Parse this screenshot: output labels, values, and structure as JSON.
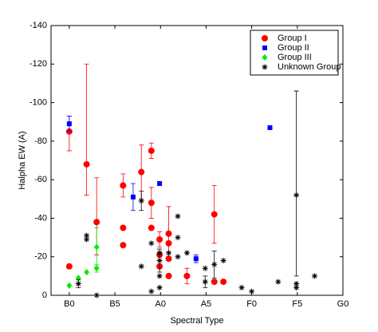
{
  "chart_data": {
    "type": "scatter",
    "xlabel": "Spectral Type",
    "ylabel": "Halpha EW (A)",
    "xlim": [
      -2,
      30
    ],
    "ylim": [
      0,
      -140
    ],
    "xticks": [
      {
        "value": 0,
        "label": "B0"
      },
      {
        "value": 5,
        "label": "B5"
      },
      {
        "value": 10,
        "label": "A0"
      },
      {
        "value": 15,
        "label": "A5"
      },
      {
        "value": 20,
        "label": "F0"
      },
      {
        "value": 25,
        "label": "F5"
      },
      {
        "value": 30,
        "label": "G0"
      }
    ],
    "yticks": [
      0,
      -20,
      -40,
      -60,
      -80,
      -100,
      -120,
      -140
    ],
    "legend": "upper right",
    "series": [
      {
        "name": "Group I",
        "color": "#ff0000",
        "marker": "circle",
        "x": [
          0,
          0,
          1.9,
          3,
          5.9,
          5.9,
          5.9,
          7.9,
          9,
          9,
          9,
          9.9,
          9.9,
          9.9,
          10.9,
          10.9,
          10.9,
          10.9,
          12.9,
          15.9,
          15.9,
          16.9
        ],
        "values": [
          -15,
          -85,
          -68,
          -38,
          -35,
          -26,
          -57,
          -64,
          -75,
          -48,
          -35,
          -29,
          -21,
          -15,
          -32,
          -27,
          -19,
          -10,
          -10,
          -42,
          -7,
          -7
        ],
        "err_neg": [
          null,
          8,
          52,
          23,
          null,
          null,
          6,
          14,
          4,
          8,
          null,
          4,
          null,
          null,
          14,
          null,
          null,
          null,
          4,
          15,
          null,
          null
        ],
        "err_pos": [
          null,
          10,
          16,
          17,
          null,
          null,
          6,
          14,
          4,
          8,
          null,
          4,
          null,
          null,
          14,
          null,
          null,
          null,
          4,
          15,
          null,
          null
        ]
      },
      {
        "name": "Group II",
        "color": "#0000ff",
        "marker": "square",
        "x": [
          0,
          7,
          9.9,
          13.9,
          22
        ],
        "values": [
          -89,
          -51,
          -58,
          -19,
          -87
        ],
        "err_neg": [
          4,
          7,
          null,
          2,
          null
        ],
        "err_pos": [
          4,
          7,
          null,
          2,
          null
        ]
      },
      {
        "name": "Group III",
        "color": "#00ee00",
        "marker": "diamond",
        "x": [
          0,
          1,
          1.9,
          3,
          3
        ],
        "values": [
          -5,
          -9,
          -12,
          -14,
          -25
        ],
        "err_neg": [
          null,
          null,
          null,
          2,
          10
        ],
        "err_pos": [
          null,
          null,
          null,
          2,
          10
        ]
      },
      {
        "name": "Unknown Group",
        "color": "#000000",
        "marker": "asterisk",
        "x": [
          1,
          1.9,
          1.9,
          3,
          7.9,
          7.9,
          9,
          9,
          9.9,
          9.9,
          9.9,
          9.9,
          10.9,
          11.9,
          11.9,
          11.9,
          12.9,
          14.9,
          14.9,
          15.9,
          16.9,
          18.9,
          20,
          22.9,
          24.9,
          24.9,
          24.9,
          26.9
        ],
        "values": [
          -6,
          -31,
          -29,
          0,
          -15,
          -49,
          -27,
          -2,
          -22,
          -18,
          -10,
          -4,
          -22,
          -41,
          -30,
          -20,
          -22,
          -14,
          -7,
          -16,
          -18,
          -4,
          -2,
          -7,
          -52,
          -6,
          -4,
          -10
        ],
        "err_neg": [
          2,
          null,
          null,
          null,
          null,
          5,
          null,
          null,
          null,
          6,
          null,
          null,
          null,
          null,
          null,
          null,
          null,
          null,
          3,
          7,
          null,
          null,
          null,
          null,
          54,
          null,
          null,
          null
        ],
        "err_pos": [
          2,
          null,
          null,
          null,
          null,
          5,
          null,
          null,
          null,
          6,
          null,
          null,
          null,
          null,
          null,
          null,
          null,
          null,
          3,
          7,
          null,
          null,
          null,
          null,
          42,
          null,
          null,
          null
        ]
      }
    ]
  }
}
